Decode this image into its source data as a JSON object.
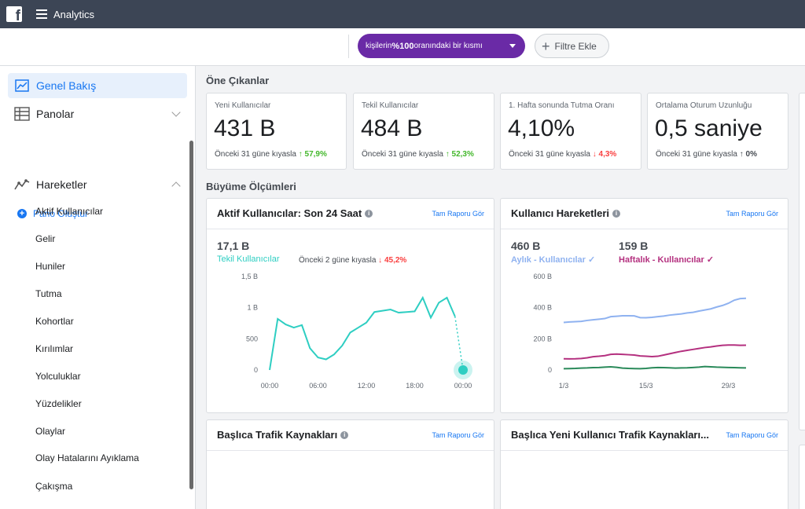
{
  "topbar": {
    "logo_letter": "f",
    "app_title": "Analytics"
  },
  "filter": {
    "audience_prefix": "kişilerin ",
    "audience_bold": "%100",
    "audience_suffix": " oranındaki bir kısmı",
    "add_filter_label": "Filtre Ekle"
  },
  "sidebar": {
    "overview": "Genel Bakış",
    "dashboards": "Panolar",
    "create_dashboard": "Pano Oluştur",
    "activities": "Hareketler",
    "sub_items": [
      "Aktif Kullanıcılar",
      "Gelir",
      "Huniler",
      "Tutma",
      "Kohortlar",
      "Kırılımlar",
      "Yolculuklar",
      "Yüzdelikler",
      "Olaylar",
      "Olay Hatalarını Ayıklama",
      "Çakışma"
    ]
  },
  "highlights": {
    "title": "Öne Çıkanlar",
    "cards": [
      {
        "label": "Yeni Kullanıcılar",
        "value": "431 B",
        "compare": "Önceki 31 güne kıyasla",
        "change": "↑ 57,9%",
        "trend": "up"
      },
      {
        "label": "Tekil Kullanıcılar",
        "value": "484 B",
        "compare": "Önceki 31 güne kıyasla",
        "change": "↑ 52,3%",
        "trend": "up"
      },
      {
        "label": "1. Hafta sonunda Tutma Oranı",
        "value": "4,10%",
        "compare": "Önceki 31 güne kıyasla",
        "change": "↓ 4,3%",
        "trend": "down"
      },
      {
        "label": "Ortalama Oturum Uzunluğu",
        "value": "0,5 saniye",
        "compare": "Önceki 31 güne kıyasla",
        "change": "↑ 0%",
        "trend": "neutral"
      }
    ]
  },
  "growth": {
    "title": "Büyüme Ölçümleri",
    "active": {
      "title": "Aktif Kullanıcılar: Son 24 Saat",
      "link": "Tam Raporu Gör",
      "value": "17,1 B",
      "series_label": "Tekil Kullanıcılar",
      "compare": "Önceki 2 güne kıyasla",
      "change": "↓ 45,2%"
    },
    "activity": {
      "title": "Kullanıcı Hareketleri",
      "link": "Tam Raporu Gör",
      "monthly_value": "460 B",
      "monthly_label": "Aylık - Kullanıcılar ✓",
      "weekly_value": "159 B",
      "weekly_label": "Haftalık - Kullanıcılar ✓"
    },
    "traffic": {
      "title": "Başlıca Trafik Kaynakları",
      "link": "Tam Raporu Gör"
    },
    "new_traffic": {
      "title": "Başlıca Yeni Kullanıcı Trafik Kaynakları...",
      "link": "Tam Raporu Gör"
    }
  },
  "colors": {
    "accent": "#1877f2",
    "purple": "#6a2aa6",
    "teal": "#2ecec2",
    "monthly": "#8fb2f0",
    "weekly": "#b4307f",
    "daily": "#2a8a5a"
  },
  "chart_data": [
    {
      "type": "line",
      "ylim": [
        0,
        1500
      ],
      "ytick_labels": [
        "1,5 B",
        "1 B",
        "500",
        "0"
      ],
      "ytick_values": [
        1500,
        1000,
        500,
        0
      ],
      "xtick_labels": [
        "00:00",
        "06:00",
        "12:00",
        "18:00",
        "00:00"
      ],
      "x": [
        0,
        1,
        2,
        3,
        4,
        5,
        6,
        7,
        8,
        9,
        10,
        11,
        12,
        13,
        14,
        15,
        16,
        17,
        18,
        19,
        20,
        21,
        22,
        23,
        24
      ],
      "series": [
        {
          "name": "Tekil Kullanıcılar",
          "values": [
            0,
            820,
            730,
            680,
            720,
            350,
            200,
            170,
            250,
            390,
            600,
            680,
            760,
            930,
            950,
            970,
            920,
            930,
            940,
            1160,
            840,
            1080,
            1160,
            860,
            0
          ]
        }
      ]
    },
    {
      "type": "line",
      "ylim": [
        0,
        600
      ],
      "ytick_labels": [
        "600 B",
        "400 B",
        "200 B",
        "0"
      ],
      "ytick_values": [
        600,
        400,
        200,
        0
      ],
      "xtick_labels": [
        "1/3",
        "15/3",
        "29/3"
      ],
      "x": [
        0,
        1,
        2,
        3,
        4,
        5,
        6,
        7,
        8,
        9,
        10,
        11,
        12,
        13,
        14,
        15,
        16,
        17,
        18,
        19,
        20,
        21,
        22,
        23,
        24,
        25,
        26,
        27,
        28,
        29,
        30,
        31
      ],
      "series": [
        {
          "name": "Aylık - Kullanıcılar",
          "values": [
            305,
            308,
            310,
            312,
            318,
            322,
            326,
            330,
            342,
            345,
            348,
            348,
            347,
            336,
            335,
            338,
            342,
            346,
            352,
            356,
            360,
            366,
            370,
            378,
            385,
            392,
            404,
            414,
            428,
            448,
            458,
            460
          ]
        },
        {
          "name": "Haftalık - Kullanıcılar",
          "values": [
            72,
            71,
            72,
            74,
            78,
            85,
            88,
            92,
            100,
            102,
            100,
            98,
            96,
            90,
            88,
            86,
            88,
            96,
            104,
            112,
            120,
            126,
            132,
            138,
            144,
            148,
            154,
            158,
            160,
            160,
            158,
            159
          ]
        },
        {
          "values": [
            8,
            9,
            10,
            12,
            13,
            15,
            16,
            18,
            20,
            17,
            12,
            10,
            9,
            8,
            10,
            14,
            16,
            15,
            14,
            12,
            13,
            14,
            16,
            18,
            22,
            20,
            18,
            17,
            16,
            15,
            14,
            13
          ]
        }
      ]
    }
  ]
}
